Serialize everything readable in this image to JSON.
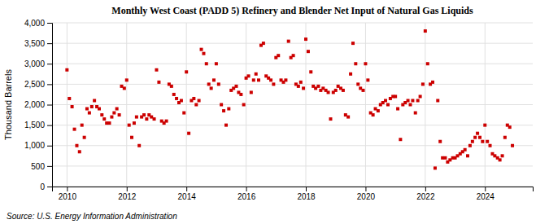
{
  "chart_data": {
    "type": "scatter",
    "title": "Monthly West Coast (PADD 5) Refinery and Blender Net Input of Natural Gas Liquids",
    "ylabel": "Thousand Barrels",
    "source": "Source: U.S. Energy Information Administration",
    "color": "#cc0000",
    "marker": "square",
    "grid": true,
    "xlim": [
      2009.5,
      2025.6
    ],
    "xticks": [
      2010,
      2012,
      2014,
      2016,
      2018,
      2020,
      2022,
      2024
    ],
    "ylim": [
      0,
      4000
    ],
    "yticks": [
      0,
      500,
      {
        "value": 1000,
        "label": "1,000"
      },
      {
        "value": 1500,
        "label": "1,500"
      },
      {
        "value": 2000,
        "label": "2,000"
      },
      {
        "value": 2500,
        "label": "2,500"
      },
      {
        "value": 3000,
        "label": "3,000"
      },
      {
        "value": 3500,
        "label": "3,500"
      },
      {
        "value": 4000,
        "label": "4,000"
      }
    ],
    "x": [
      2010.0,
      2010.08,
      2010.17,
      2010.25,
      2010.33,
      2010.42,
      2010.5,
      2010.58,
      2010.67,
      2010.75,
      2010.83,
      2010.92,
      2011.0,
      2011.08,
      2011.17,
      2011.25,
      2011.33,
      2011.42,
      2011.5,
      2011.58,
      2011.67,
      2011.75,
      2011.83,
      2011.92,
      2012.0,
      2012.08,
      2012.17,
      2012.25,
      2012.33,
      2012.42,
      2012.5,
      2012.58,
      2012.67,
      2012.75,
      2012.83,
      2012.92,
      2013.0,
      2013.08,
      2013.17,
      2013.25,
      2013.33,
      2013.42,
      2013.5,
      2013.58,
      2013.67,
      2013.75,
      2013.83,
      2013.92,
      2014.0,
      2014.08,
      2014.17,
      2014.25,
      2014.33,
      2014.42,
      2014.5,
      2014.58,
      2014.67,
      2014.75,
      2014.83,
      2014.92,
      2015.0,
      2015.08,
      2015.17,
      2015.25,
      2015.33,
      2015.42,
      2015.5,
      2015.58,
      2015.67,
      2015.75,
      2015.83,
      2015.92,
      2016.0,
      2016.08,
      2016.17,
      2016.25,
      2016.33,
      2016.42,
      2016.5,
      2016.58,
      2016.67,
      2016.75,
      2016.83,
      2016.92,
      2017.0,
      2017.08,
      2017.17,
      2017.25,
      2017.33,
      2017.42,
      2017.5,
      2017.58,
      2017.67,
      2017.75,
      2017.83,
      2017.92,
      2018.0,
      2018.08,
      2018.17,
      2018.25,
      2018.33,
      2018.42,
      2018.5,
      2018.58,
      2018.67,
      2018.75,
      2018.83,
      2018.92,
      2019.0,
      2019.08,
      2019.17,
      2019.25,
      2019.33,
      2019.42,
      2019.5,
      2019.58,
      2019.67,
      2019.75,
      2019.83,
      2019.92,
      2020.0,
      2020.08,
      2020.17,
      2020.25,
      2020.33,
      2020.42,
      2020.5,
      2020.58,
      2020.67,
      2020.75,
      2020.83,
      2020.92,
      2021.0,
      2021.08,
      2021.17,
      2021.25,
      2021.33,
      2021.42,
      2021.5,
      2021.58,
      2021.67,
      2021.75,
      2021.83,
      2021.92,
      2022.0,
      2022.08,
      2022.17,
      2022.25,
      2022.33,
      2022.42,
      2022.5,
      2022.58,
      2022.67,
      2022.75,
      2022.83,
      2022.92,
      2023.0,
      2023.08,
      2023.17,
      2023.25,
      2023.33,
      2023.42,
      2023.5,
      2023.58,
      2023.67,
      2023.75,
      2023.83,
      2023.92,
      2024.0,
      2024.08,
      2024.17,
      2024.25,
      2024.33,
      2024.42,
      2024.5,
      2024.58,
      2024.67,
      2024.75,
      2024.83,
      2024.92
    ],
    "values": [
      2850,
      2150,
      1950,
      1400,
      1000,
      850,
      1500,
      1200,
      1900,
      1800,
      1950,
      2100,
      1950,
      1900,
      1750,
      1650,
      1550,
      1550,
      1700,
      1800,
      1900,
      1750,
      2450,
      2400,
      2600,
      1500,
      1200,
      1550,
      1700,
      1000,
      1700,
      1750,
      1650,
      1750,
      1700,
      1650,
      2850,
      2550,
      1600,
      1550,
      1600,
      2500,
      2450,
      2250,
      2150,
      2050,
      2100,
      1800,
      2800,
      1300,
      2100,
      2150,
      2000,
      2100,
      3350,
      3250,
      3000,
      2500,
      2400,
      2600,
      3000,
      2500,
      2000,
      1850,
      1500,
      1900,
      2350,
      2400,
      2450,
      2300,
      2250,
      2000,
      2650,
      2700,
      2300,
      2600,
      2750,
      2600,
      3450,
      3500,
      2700,
      2650,
      2600,
      2500,
      3150,
      3200,
      2600,
      2550,
      2600,
      3550,
      3150,
      3200,
      2500,
      2450,
      2550,
      2400,
      3600,
      3300,
      2800,
      2450,
      2400,
      2450,
      2350,
      2400,
      2350,
      2300,
      1650,
      2300,
      2350,
      2450,
      2400,
      2350,
      1750,
      1700,
      2750,
      3500,
      3000,
      2500,
      2400,
      2350,
      3000,
      2600,
      1800,
      1750,
      1900,
      1850,
      2000,
      2050,
      2100,
      2000,
      2150,
      2200,
      2200,
      1900,
      1150,
      2000,
      2050,
      2100,
      2000,
      2100,
      1800,
      2100,
      2200,
      2500,
      3800,
      3000,
      2500,
      2550,
      450,
      2100,
      1100,
      700,
      700,
      600,
      650,
      700,
      700,
      750,
      800,
      850,
      900,
      750,
      1000,
      1100,
      1200,
      1300,
      1200,
      1100,
      1500,
      1100,
      1000,
      800,
      750,
      700,
      650,
      750,
      1200,
      1500,
      1450,
      1000
    ]
  }
}
